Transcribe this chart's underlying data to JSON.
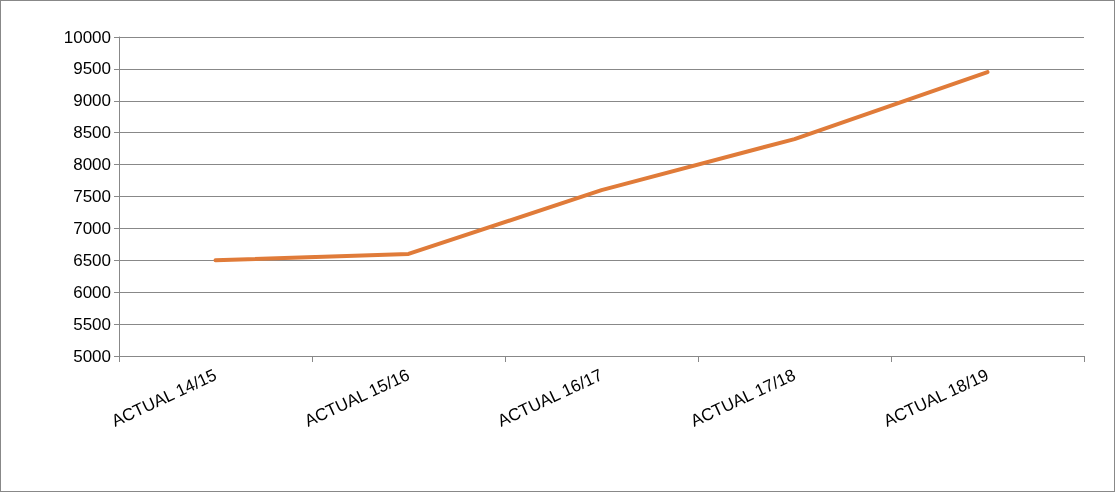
{
  "chart_data": {
    "type": "line",
    "categories": [
      "ACTUAL 14/15",
      "ACTUAL 15/16",
      "ACTUAL 16/17",
      "ACTUAL 17/18",
      "ACTUAL 18/19"
    ],
    "series": [
      {
        "color": "#e07b39",
        "values": [
          6500,
          6600,
          7600,
          8400,
          9450
        ]
      }
    ],
    "ylim": [
      5000,
      10000
    ],
    "yticks": [
      5000,
      5500,
      6000,
      6500,
      7000,
      7500,
      8000,
      8500,
      9000,
      9500,
      10000
    ],
    "grid": "y",
    "marker": "none",
    "line_style": "solid"
  }
}
